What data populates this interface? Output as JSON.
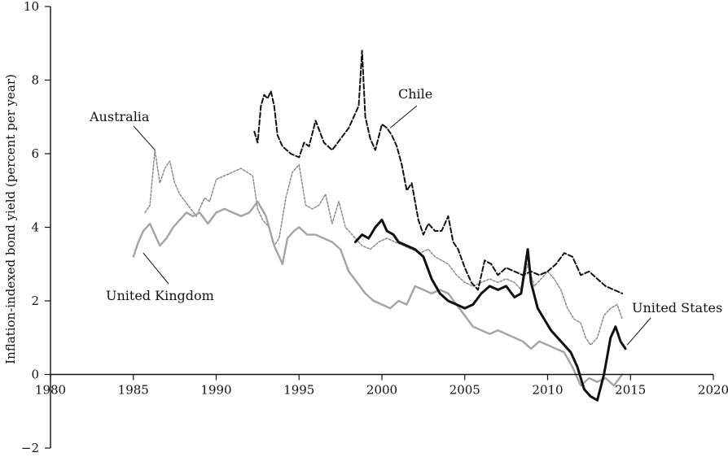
{
  "chart_data": {
    "type": "line",
    "ylabel": "Inflation-indexed bond yield (percent per year)",
    "xlim": [
      1980,
      2020
    ],
    "ylim": [
      -2,
      10
    ],
    "x_ticks": [
      1980,
      1985,
      1990,
      1995,
      2000,
      2005,
      2010,
      2015,
      2020
    ],
    "y_ticks": [
      -2,
      0,
      2,
      4,
      6,
      8,
      10
    ],
    "x_tick_labels": [
      "1980",
      "1985",
      "1990",
      "1995",
      "2000",
      "2005",
      "2010",
      "2015",
      "2020"
    ],
    "y_tick_labels": [
      "−2",
      "0",
      "2",
      "4",
      "6",
      "8",
      "10"
    ],
    "grid": false,
    "series": [
      {
        "name": "Australia",
        "color": "#8a8a8a",
        "style": "dotted",
        "points": [
          [
            1985.7,
            4.4
          ],
          [
            1986.0,
            4.6
          ],
          [
            1986.3,
            6.1
          ],
          [
            1986.6,
            5.2
          ],
          [
            1986.9,
            5.6
          ],
          [
            1987.2,
            5.8
          ],
          [
            1987.5,
            5.2
          ],
          [
            1987.8,
            4.9
          ],
          [
            1988.3,
            4.6
          ],
          [
            1988.8,
            4.3
          ],
          [
            1989.3,
            4.8
          ],
          [
            1989.6,
            4.7
          ],
          [
            1990.0,
            5.3
          ],
          [
            1990.5,
            5.4
          ],
          [
            1991.0,
            5.5
          ],
          [
            1991.5,
            5.6
          ],
          [
            1992.2,
            5.4
          ],
          [
            1992.5,
            4.5
          ],
          [
            1992.8,
            4.2
          ],
          [
            1993.2,
            4.0
          ],
          [
            1993.5,
            3.5
          ],
          [
            1993.8,
            3.7
          ],
          [
            1994.2,
            4.8
          ],
          [
            1994.6,
            5.5
          ],
          [
            1995.0,
            5.7
          ],
          [
            1995.4,
            4.6
          ],
          [
            1995.8,
            4.5
          ],
          [
            1996.2,
            4.6
          ],
          [
            1996.6,
            4.9
          ],
          [
            1997.0,
            4.1
          ],
          [
            1997.4,
            4.7
          ],
          [
            1997.8,
            4.0
          ],
          [
            1998.2,
            3.8
          ],
          [
            1998.8,
            3.5
          ],
          [
            1999.3,
            3.4
          ],
          [
            1999.8,
            3.6
          ],
          [
            2000.3,
            3.7
          ],
          [
            2000.8,
            3.6
          ],
          [
            2001.3,
            3.5
          ],
          [
            2001.8,
            3.4
          ],
          [
            2002.3,
            3.3
          ],
          [
            2002.8,
            3.4
          ],
          [
            2003.2,
            3.2
          ],
          [
            2003.6,
            3.1
          ],
          [
            2004.0,
            3.0
          ],
          [
            2004.5,
            2.7
          ],
          [
            2005.0,
            2.5
          ],
          [
            2005.5,
            2.4
          ],
          [
            2006.0,
            2.5
          ],
          [
            2006.5,
            2.6
          ],
          [
            2007.0,
            2.5
          ],
          [
            2007.5,
            2.6
          ],
          [
            2008.0,
            2.5
          ],
          [
            2008.4,
            2.3
          ],
          [
            2008.8,
            3.0
          ],
          [
            2009.2,
            2.4
          ],
          [
            2009.6,
            2.6
          ],
          [
            2010.0,
            2.8
          ],
          [
            2010.4,
            2.6
          ],
          [
            2010.8,
            2.3
          ],
          [
            2011.2,
            1.8
          ],
          [
            2011.6,
            1.5
          ],
          [
            2012.0,
            1.4
          ],
          [
            2012.3,
            1.0
          ],
          [
            2012.6,
            0.8
          ],
          [
            2013.0,
            1.0
          ],
          [
            2013.4,
            1.6
          ],
          [
            2013.8,
            1.8
          ],
          [
            2014.2,
            1.9
          ],
          [
            2014.5,
            1.5
          ]
        ]
      },
      {
        "name": "Chile",
        "color": "#111111",
        "style": "dashed",
        "points": [
          [
            1992.3,
            6.6
          ],
          [
            1992.5,
            6.3
          ],
          [
            1992.7,
            7.3
          ],
          [
            1992.9,
            7.6
          ],
          [
            1993.1,
            7.5
          ],
          [
            1993.3,
            7.7
          ],
          [
            1993.5,
            7.3
          ],
          [
            1993.7,
            6.5
          ],
          [
            1994.0,
            6.2
          ],
          [
            1994.5,
            6.0
          ],
          [
            1995.0,
            5.9
          ],
          [
            1995.3,
            6.3
          ],
          [
            1995.6,
            6.2
          ],
          [
            1996.0,
            6.9
          ],
          [
            1996.5,
            6.3
          ],
          [
            1997.0,
            6.1
          ],
          [
            1997.5,
            6.4
          ],
          [
            1998.0,
            6.7
          ],
          [
            1998.3,
            7.0
          ],
          [
            1998.6,
            7.3
          ],
          [
            1998.8,
            8.8
          ],
          [
            1999.0,
            7.0
          ],
          [
            1999.3,
            6.4
          ],
          [
            1999.6,
            6.1
          ],
          [
            2000.0,
            6.8
          ],
          [
            2000.3,
            6.7
          ],
          [
            2000.6,
            6.5
          ],
          [
            2000.9,
            6.2
          ],
          [
            2001.2,
            5.7
          ],
          [
            2001.5,
            5.0
          ],
          [
            2001.8,
            5.2
          ],
          [
            2002.2,
            4.2
          ],
          [
            2002.5,
            3.8
          ],
          [
            2002.8,
            4.1
          ],
          [
            2003.2,
            3.9
          ],
          [
            2003.6,
            3.9
          ],
          [
            2004.0,
            4.3
          ],
          [
            2004.3,
            3.6
          ],
          [
            2004.6,
            3.4
          ],
          [
            2005.0,
            2.9
          ],
          [
            2005.4,
            2.5
          ],
          [
            2005.8,
            2.3
          ],
          [
            2006.2,
            3.1
          ],
          [
            2006.6,
            3.0
          ],
          [
            2007.0,
            2.7
          ],
          [
            2007.5,
            2.9
          ],
          [
            2008.0,
            2.8
          ],
          [
            2008.5,
            2.7
          ],
          [
            2009.0,
            2.8
          ],
          [
            2009.5,
            2.7
          ],
          [
            2010.0,
            2.8
          ],
          [
            2010.5,
            3.0
          ],
          [
            2011.0,
            3.3
          ],
          [
            2011.5,
            3.2
          ],
          [
            2012.0,
            2.7
          ],
          [
            2012.5,
            2.8
          ],
          [
            2013.0,
            2.6
          ],
          [
            2013.5,
            2.4
          ],
          [
            2014.0,
            2.3
          ],
          [
            2014.5,
            2.2
          ]
        ]
      },
      {
        "name": "United Kingdom",
        "color": "#a3a3a3",
        "style": "solid",
        "points": [
          [
            1985.0,
            3.2
          ],
          [
            1985.3,
            3.6
          ],
          [
            1985.6,
            3.9
          ],
          [
            1986.0,
            4.1
          ],
          [
            1986.3,
            3.8
          ],
          [
            1986.6,
            3.5
          ],
          [
            1987.0,
            3.7
          ],
          [
            1987.4,
            4.0
          ],
          [
            1987.8,
            4.2
          ],
          [
            1988.2,
            4.4
          ],
          [
            1988.6,
            4.3
          ],
          [
            1989.0,
            4.4
          ],
          [
            1989.5,
            4.1
          ],
          [
            1990.0,
            4.4
          ],
          [
            1990.5,
            4.5
          ],
          [
            1991.0,
            4.4
          ],
          [
            1991.5,
            4.3
          ],
          [
            1992.0,
            4.4
          ],
          [
            1992.5,
            4.7
          ],
          [
            1993.0,
            4.3
          ],
          [
            1993.5,
            3.5
          ],
          [
            1994.0,
            3.0
          ],
          [
            1994.3,
            3.7
          ],
          [
            1994.7,
            3.9
          ],
          [
            1995.0,
            4.0
          ],
          [
            1995.5,
            3.8
          ],
          [
            1996.0,
            3.8
          ],
          [
            1996.5,
            3.7
          ],
          [
            1997.0,
            3.6
          ],
          [
            1997.5,
            3.4
          ],
          [
            1998.0,
            2.8
          ],
          [
            1998.5,
            2.5
          ],
          [
            1999.0,
            2.2
          ],
          [
            1999.5,
            2.0
          ],
          [
            2000.0,
            1.9
          ],
          [
            2000.5,
            1.8
          ],
          [
            2001.0,
            2.0
          ],
          [
            2001.5,
            1.9
          ],
          [
            2002.0,
            2.4
          ],
          [
            2002.5,
            2.3
          ],
          [
            2003.0,
            2.2
          ],
          [
            2003.5,
            2.3
          ],
          [
            2004.0,
            2.2
          ],
          [
            2004.5,
            1.9
          ],
          [
            2005.0,
            1.6
          ],
          [
            2005.5,
            1.3
          ],
          [
            2006.0,
            1.2
          ],
          [
            2006.5,
            1.1
          ],
          [
            2007.0,
            1.2
          ],
          [
            2007.5,
            1.1
          ],
          [
            2008.0,
            1.0
          ],
          [
            2008.5,
            0.9
          ],
          [
            2009.0,
            0.7
          ],
          [
            2009.5,
            0.9
          ],
          [
            2010.0,
            0.8
          ],
          [
            2010.5,
            0.7
          ],
          [
            2011.0,
            0.6
          ],
          [
            2011.5,
            0.2
          ],
          [
            2012.0,
            -0.3
          ],
          [
            2012.5,
            -0.1
          ],
          [
            2013.0,
            -0.2
          ],
          [
            2013.5,
            -0.1
          ],
          [
            2014.0,
            -0.3
          ],
          [
            2014.5,
            0.0
          ]
        ]
      },
      {
        "name": "United States",
        "color": "#111111",
        "style": "solid-thick",
        "points": [
          [
            1998.4,
            3.6
          ],
          [
            1998.8,
            3.8
          ],
          [
            1999.2,
            3.7
          ],
          [
            1999.6,
            4.0
          ],
          [
            2000.0,
            4.2
          ],
          [
            2000.3,
            3.9
          ],
          [
            2000.7,
            3.8
          ],
          [
            2001.0,
            3.6
          ],
          [
            2001.5,
            3.5
          ],
          [
            2002.0,
            3.4
          ],
          [
            2002.5,
            3.2
          ],
          [
            2003.0,
            2.6
          ],
          [
            2003.5,
            2.2
          ],
          [
            2004.0,
            2.0
          ],
          [
            2004.5,
            1.9
          ],
          [
            2005.0,
            1.8
          ],
          [
            2005.5,
            1.9
          ],
          [
            2006.0,
            2.2
          ],
          [
            2006.5,
            2.4
          ],
          [
            2007.0,
            2.3
          ],
          [
            2007.5,
            2.4
          ],
          [
            2008.0,
            2.1
          ],
          [
            2008.4,
            2.2
          ],
          [
            2008.8,
            3.4
          ],
          [
            2009.0,
            2.5
          ],
          [
            2009.4,
            1.8
          ],
          [
            2009.8,
            1.5
          ],
          [
            2010.2,
            1.2
          ],
          [
            2010.6,
            1.0
          ],
          [
            2011.0,
            0.8
          ],
          [
            2011.4,
            0.6
          ],
          [
            2011.8,
            0.2
          ],
          [
            2012.2,
            -0.4
          ],
          [
            2012.6,
            -0.6
          ],
          [
            2013.0,
            -0.7
          ],
          [
            2013.4,
            0.0
          ],
          [
            2013.8,
            1.0
          ],
          [
            2014.1,
            1.3
          ],
          [
            2014.4,
            0.9
          ],
          [
            2014.7,
            0.7
          ]
        ]
      }
    ],
    "annotations": [
      {
        "text": "Australia",
        "series": "Australia",
        "point_x": 1986.3,
        "point_y": 6.1
      },
      {
        "text": "Chile",
        "series": "Chile",
        "point_x": 2000.5,
        "point_y": 6.7
      },
      {
        "text": "United Kingdom",
        "series": "United Kingdom",
        "point_x": 1985.6,
        "point_y": 3.3
      },
      {
        "text": "United States",
        "series": "United States",
        "point_x": 2014.8,
        "point_y": 0.8
      }
    ]
  }
}
